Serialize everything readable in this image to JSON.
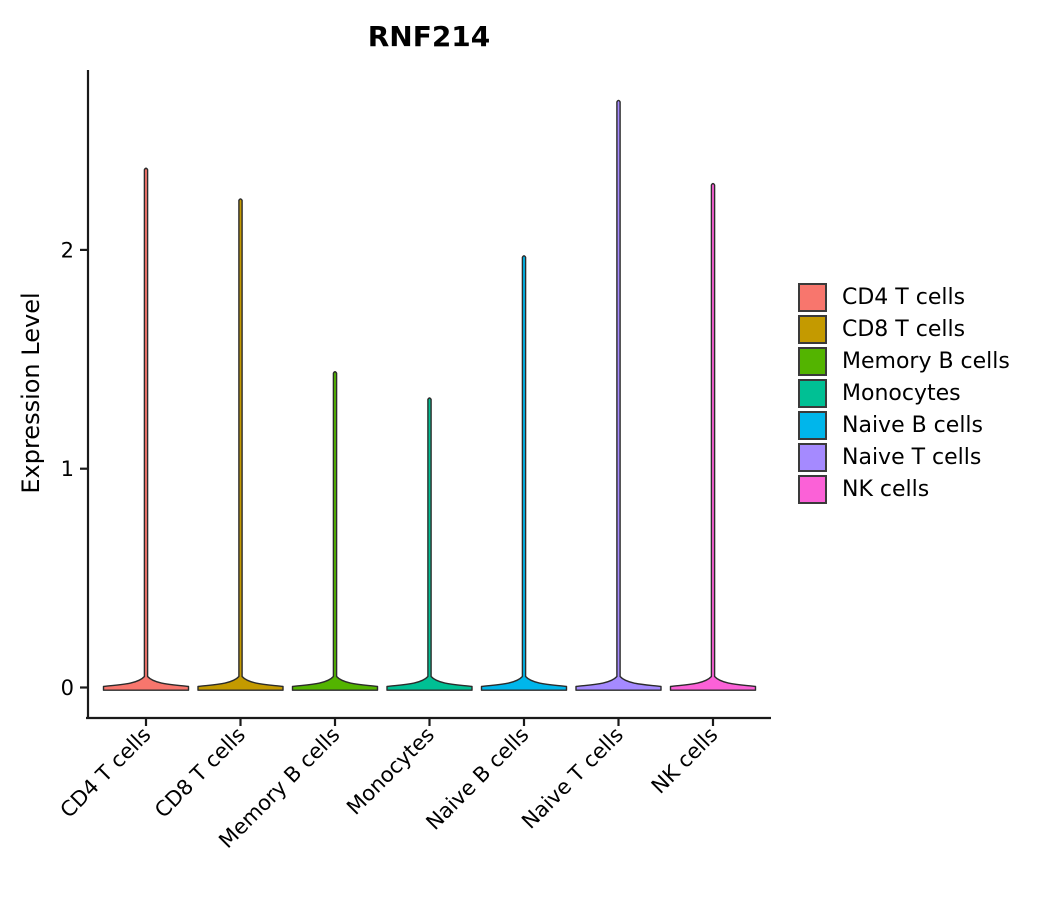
{
  "chart_data": {
    "type": "violin",
    "title": "RNF214",
    "ylabel": "Expression Level",
    "xlabel": "",
    "categories": [
      "CD4 T cells",
      "CD8 T cells",
      "Memory B cells",
      "Monocytes",
      "Naive B cells",
      "Naive T cells",
      "NK cells"
    ],
    "series": [
      {
        "name": "CD4 T cells",
        "color": "#F8766D",
        "max": 2.38
      },
      {
        "name": "CD8 T cells",
        "color": "#C49A00",
        "max": 2.24
      },
      {
        "name": "Memory B cells",
        "color": "#53B400",
        "max": 1.45
      },
      {
        "name": "Monocytes",
        "color": "#00C094",
        "max": 1.33
      },
      {
        "name": "Naive B cells",
        "color": "#00B6EB",
        "max": 1.98
      },
      {
        "name": "Naive T cells",
        "color": "#A58AFF",
        "max": 2.69
      },
      {
        "name": "NK cells",
        "color": "#FB61D7",
        "max": 2.31
      }
    ],
    "distribution_note": "each violin is a wide flat base at 0 (expression mass concentrated at zero) with a very thin spike rising to its max value",
    "yticks": [
      "0",
      "1",
      "2"
    ],
    "ylim": [
      -0.14,
      2.82
    ],
    "grid": false,
    "legend_position": "right",
    "x_tick_angle": 45
  },
  "legend": {
    "items": [
      {
        "label": "CD4 T cells",
        "color": "#F8766D"
      },
      {
        "label": "CD8 T cells",
        "color": "#C49A00"
      },
      {
        "label": "Memory B cells",
        "color": "#53B400"
      },
      {
        "label": "Monocytes",
        "color": "#00C094"
      },
      {
        "label": "Naive B cells",
        "color": "#00B6EB"
      },
      {
        "label": "Naive T cells",
        "color": "#A58AFF"
      },
      {
        "label": "NK cells",
        "color": "#FB61D7"
      }
    ]
  },
  "colors": {
    "axis": "#1a1a1a",
    "violin_stroke": "#2b2b2b",
    "text": "#000000"
  }
}
